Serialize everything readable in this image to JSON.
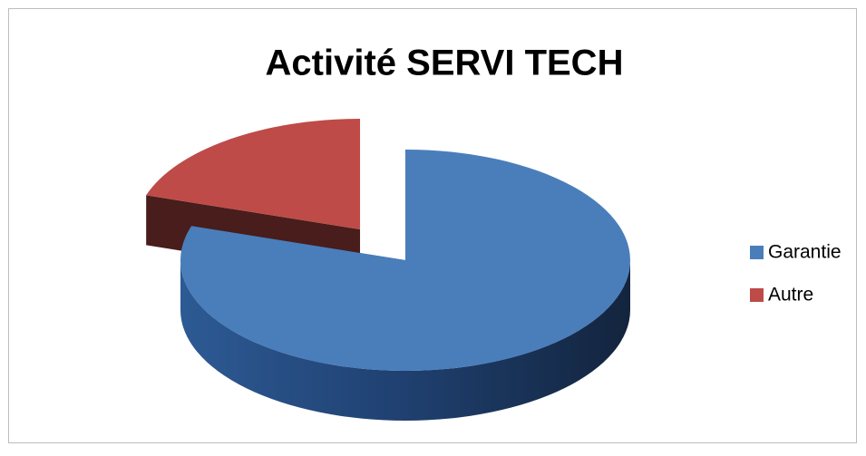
{
  "chart_data": {
    "type": "pie",
    "title": "Activité SERVI TECH",
    "categories": [
      "Garantie",
      "Autre"
    ],
    "values": [
      80,
      20
    ],
    "colors": [
      "#4a7ebb",
      "#be4b48"
    ],
    "legend": "right"
  }
}
